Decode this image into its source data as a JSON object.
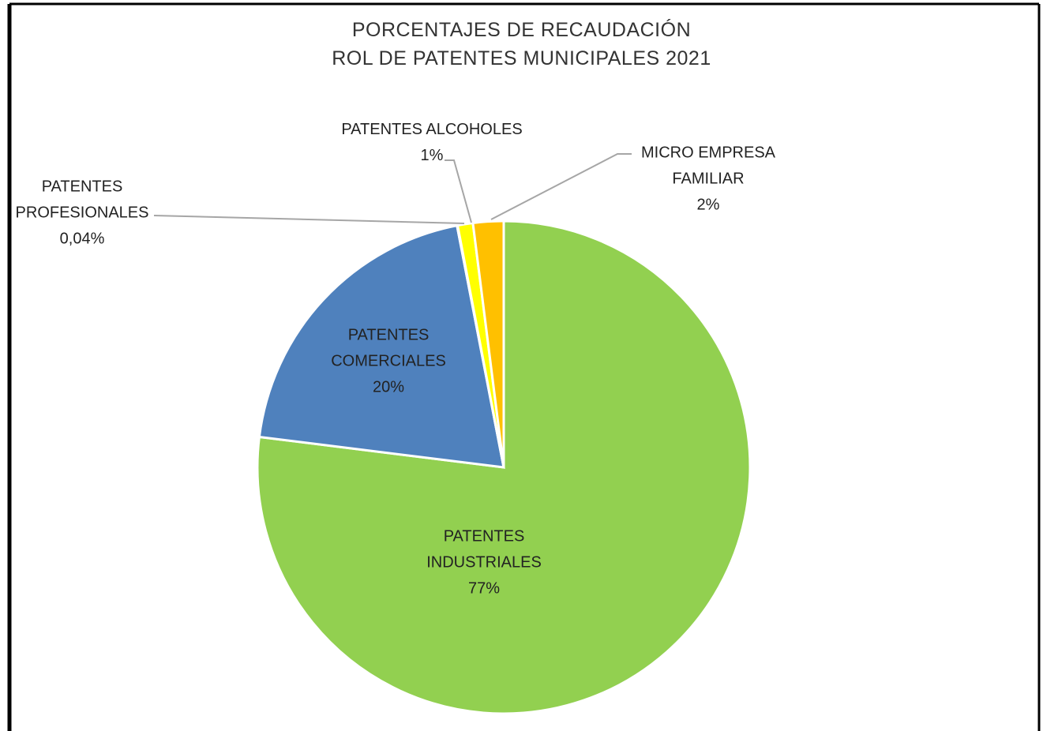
{
  "chart_data": {
    "type": "pie",
    "title": "PORCENTAJES DE RECAUDACIÓN",
    "subtitle": "ROL DE PATENTES MUNICIPALES 2021",
    "categories": [
      "PATENTES INDUSTRIALES",
      "PATENTES COMERCIALES",
      "PATENTES PROFESIONALES",
      "PATENTES ALCOHOLES",
      "MICRO EMPRESA FAMILIAR"
    ],
    "values": [
      77,
      20,
      0.04,
      1,
      2
    ],
    "value_labels": [
      "77%",
      "20%",
      "0,04%",
      "1%",
      "2%"
    ],
    "colors": [
      "#92d050",
      "#4f81bd",
      "#7f7f7f",
      "#ffff00",
      "#ffc000"
    ]
  }
}
